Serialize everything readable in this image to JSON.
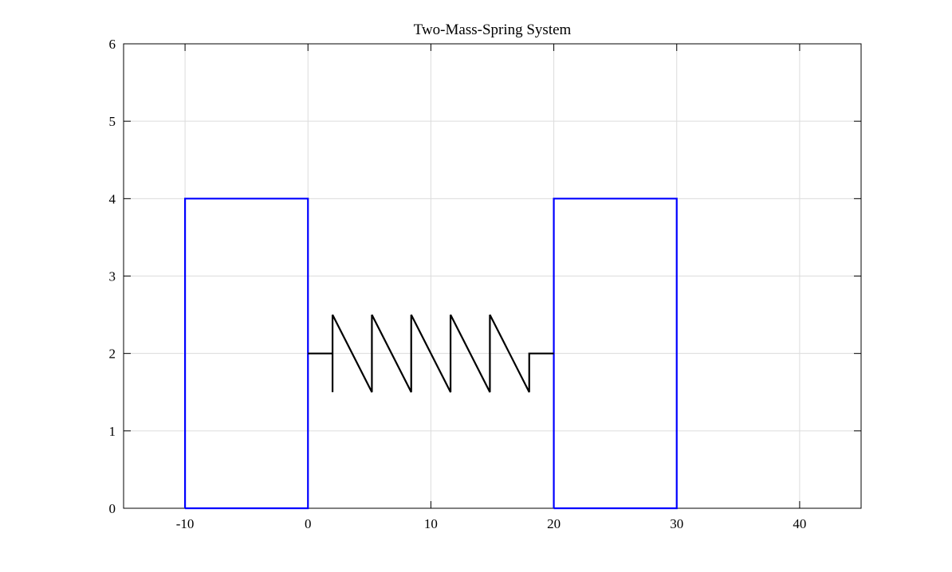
{
  "chart_data": {
    "type": "line",
    "title": "Two-Mass-Spring System",
    "xlabel": "",
    "ylabel": "",
    "xlim": [
      -15,
      45
    ],
    "ylim": [
      0,
      6
    ],
    "xticks": [
      -10,
      0,
      10,
      20,
      30,
      40
    ],
    "yticks": [
      0,
      1,
      2,
      3,
      4,
      5,
      6
    ],
    "xtick_labels": [
      "-10",
      "0",
      "10",
      "20",
      "30",
      "40"
    ],
    "ytick_labels": [
      "0",
      "1",
      "2",
      "3",
      "4",
      "5",
      "6"
    ],
    "grid": true,
    "series": [
      {
        "color": "#0000ff",
        "points": [
          [
            -10,
            0
          ],
          [
            0,
            0
          ],
          [
            0,
            4
          ],
          [
            -10,
            4
          ],
          [
            -10,
            0
          ]
        ]
      },
      {
        "color": "#0000ff",
        "points": [
          [
            20,
            0
          ],
          [
            30,
            0
          ],
          [
            30,
            4
          ],
          [
            20,
            4
          ],
          [
            20,
            0
          ]
        ]
      },
      {
        "color": "#000000",
        "points": [
          [
            0,
            2
          ],
          [
            2,
            2
          ],
          [
            2,
            1.5
          ],
          [
            2,
            2.5
          ],
          [
            5.2,
            1.5
          ],
          [
            5.2,
            2.5
          ],
          [
            8.4,
            1.5
          ],
          [
            8.4,
            2.5
          ],
          [
            11.6,
            1.5
          ],
          [
            11.6,
            2.5
          ],
          [
            14.8,
            1.5
          ],
          [
            14.8,
            2.5
          ],
          [
            18,
            1.5
          ],
          [
            18,
            2
          ],
          [
            20,
            2
          ]
        ]
      }
    ]
  }
}
